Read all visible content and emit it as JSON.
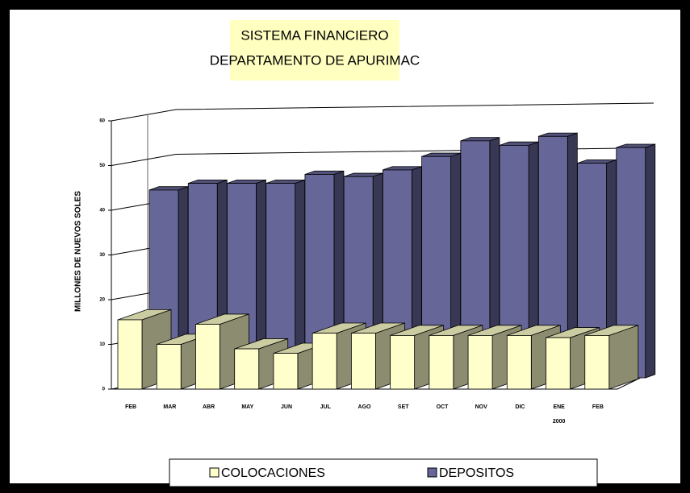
{
  "chart_data": {
    "type": "bar3d",
    "title": [
      "SISTEMA FINANCIERO",
      "DEPARTAMENTO DE APURIMAC"
    ],
    "y_label": "MILLONES DE NUEVOS SOLES",
    "categories": [
      "FEB",
      "MAR",
      "ABR",
      "MAY",
      "JUN",
      "JUL",
      "AGO",
      "SET",
      "OCT",
      "NOV",
      "DIC",
      "ENE 2000",
      "FEB"
    ],
    "series": [
      {
        "name": "COLOCACIONES",
        "color": "#ffffcc",
        "values": [
          15.5,
          10,
          14.5,
          9,
          8,
          12.5,
          12.5,
          12,
          12,
          12,
          12,
          11.5,
          12
        ]
      },
      {
        "name": "DEPOSITOS",
        "color": "#666699",
        "values": [
          42,
          43.5,
          43.5,
          43.5,
          45.5,
          45,
          46.5,
          49.5,
          53,
          52,
          54,
          48,
          51.5
        ]
      }
    ],
    "ylim": [
      0,
      60
    ],
    "yticks": [
      0,
      10,
      20,
      30,
      40,
      50,
      60
    ],
    "grid": true,
    "legend": "bottom"
  }
}
